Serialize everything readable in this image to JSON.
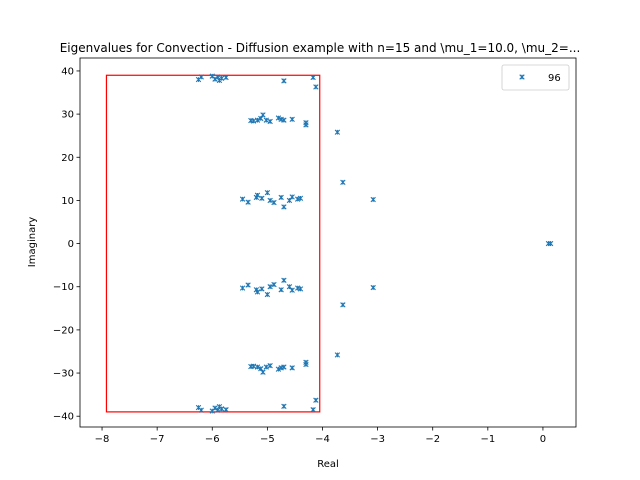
{
  "chart_data": {
    "type": "scatter",
    "title": "Eigenvalues for Convection - Diffusion example with n=15 and \\mu_1=10.0, \\mu_2=...",
    "xlabel": "Real",
    "ylabel": "Imaginary",
    "xlim": [
      -8.4,
      0.6
    ],
    "ylim": [
      -42.5,
      43
    ],
    "xticks": [
      -8,
      -7,
      -6,
      -5,
      -4,
      -3,
      -2,
      -1,
      0
    ],
    "xtick_labels": [
      "−8",
      "−7",
      "−6",
      "−5",
      "−4",
      "−3",
      "−2",
      "−1",
      "0"
    ],
    "yticks": [
      -40,
      -30,
      -20,
      -10,
      0,
      10,
      20,
      30,
      40
    ],
    "ytick_labels": [
      "−40",
      "−30",
      "−20",
      "−10",
      "0",
      "10",
      "20",
      "30",
      "40"
    ],
    "grid": false,
    "legend_position": "top-right",
    "marker_color": "#1f77b4",
    "box_color": "#ff0000",
    "rectangle": {
      "x": [
        -7.92,
        -4.05
      ],
      "y": [
        -39,
        39
      ]
    },
    "series": [
      {
        "name": "96",
        "points": [
          [
            -6.25,
            38.0
          ],
          [
            -6.2,
            38.6
          ],
          [
            -6.0,
            38.8
          ],
          [
            -5.95,
            38.1
          ],
          [
            -5.9,
            38.6
          ],
          [
            -5.87,
            37.8
          ],
          [
            -5.83,
            38.3
          ],
          [
            -5.75,
            38.5
          ],
          [
            -4.7,
            37.7
          ],
          [
            -4.17,
            38.5
          ],
          [
            -4.12,
            36.3
          ],
          [
            -5.3,
            28.5
          ],
          [
            -5.25,
            28.4
          ],
          [
            -5.18,
            28.6
          ],
          [
            -5.12,
            29.0
          ],
          [
            -5.08,
            29.8
          ],
          [
            -5.02,
            28.6
          ],
          [
            -4.95,
            28.3
          ],
          [
            -4.8,
            29.1
          ],
          [
            -4.75,
            28.8
          ],
          [
            -4.7,
            28.6
          ],
          [
            -4.55,
            28.8
          ],
          [
            -4.3,
            28.0
          ],
          [
            -4.3,
            27.5
          ],
          [
            -3.73,
            25.8
          ],
          [
            -3.63,
            14.2
          ],
          [
            -3.08,
            10.2
          ],
          [
            -5.45,
            10.3
          ],
          [
            -5.35,
            9.6
          ],
          [
            -5.2,
            10.7
          ],
          [
            -5.18,
            11.2
          ],
          [
            -5.1,
            10.5
          ],
          [
            -5.0,
            11.8
          ],
          [
            -4.95,
            10.0
          ],
          [
            -4.88,
            9.5
          ],
          [
            -4.75,
            10.7
          ],
          [
            -4.7,
            8.5
          ],
          [
            -4.6,
            10.0
          ],
          [
            -4.55,
            10.8
          ],
          [
            -4.45,
            10.3
          ],
          [
            -4.4,
            10.5
          ],
          [
            0.1,
            0.0
          ],
          [
            0.14,
            0.0
          ],
          [
            -5.45,
            -10.3
          ],
          [
            -5.35,
            -9.6
          ],
          [
            -5.2,
            -10.7
          ],
          [
            -5.18,
            -11.2
          ],
          [
            -5.1,
            -10.5
          ],
          [
            -5.0,
            -11.8
          ],
          [
            -4.95,
            -10.0
          ],
          [
            -4.88,
            -9.5
          ],
          [
            -4.75,
            -10.7
          ],
          [
            -4.7,
            -8.5
          ],
          [
            -4.6,
            -10.0
          ],
          [
            -4.55,
            -10.8
          ],
          [
            -4.45,
            -10.3
          ],
          [
            -4.4,
            -10.5
          ],
          [
            -3.63,
            -14.2
          ],
          [
            -3.08,
            -10.2
          ],
          [
            -3.73,
            -25.8
          ],
          [
            -5.3,
            -28.5
          ],
          [
            -5.25,
            -28.4
          ],
          [
            -5.18,
            -28.6
          ],
          [
            -5.12,
            -29.0
          ],
          [
            -5.08,
            -29.8
          ],
          [
            -5.02,
            -28.6
          ],
          [
            -4.95,
            -28.3
          ],
          [
            -4.8,
            -29.1
          ],
          [
            -4.75,
            -28.8
          ],
          [
            -4.7,
            -28.6
          ],
          [
            -4.55,
            -28.8
          ],
          [
            -4.3,
            -28.0
          ],
          [
            -4.3,
            -27.5
          ],
          [
            -6.25,
            -38.0
          ],
          [
            -6.2,
            -38.6
          ],
          [
            -6.0,
            -38.8
          ],
          [
            -5.95,
            -38.1
          ],
          [
            -5.9,
            -38.6
          ],
          [
            -5.87,
            -37.8
          ],
          [
            -5.83,
            -38.3
          ],
          [
            -5.75,
            -38.5
          ],
          [
            -4.7,
            -37.7
          ],
          [
            -4.17,
            -38.5
          ],
          [
            -4.12,
            -36.3
          ]
        ]
      }
    ]
  }
}
